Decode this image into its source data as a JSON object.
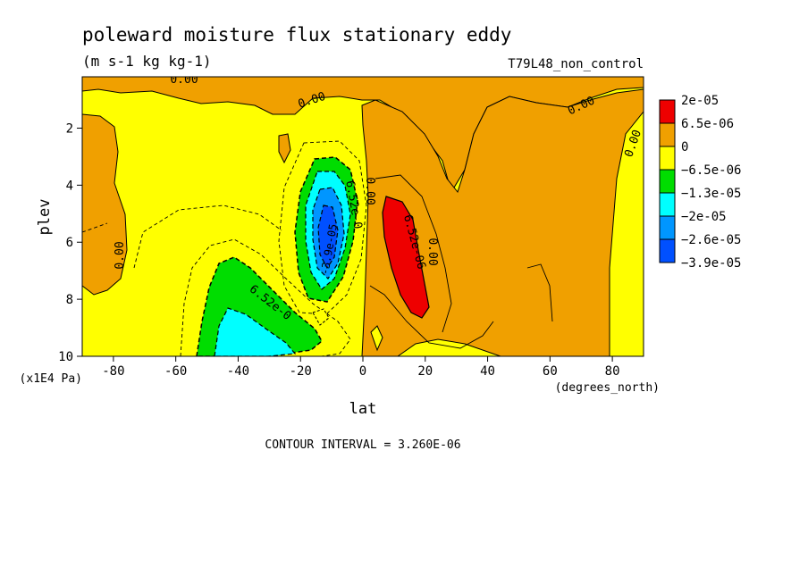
{
  "chart_data": {
    "type": "heatmap",
    "title": "poleward moisture flux stationary eddy",
    "subtitle": "(m s-1 kg kg-1)",
    "dataset": "T79L48_non_control",
    "xlabel": "lat",
    "xunits": "(degrees_north)",
    "ylabel": "plev",
    "yunits": "(x1E4 Pa)",
    "xlim": [
      -90,
      90
    ],
    "ylim": [
      10,
      0.2
    ],
    "x_ticks": [
      -80,
      -60,
      -40,
      -20,
      0,
      20,
      40,
      60,
      80
    ],
    "y_ticks": [
      2,
      4,
      6,
      8,
      10
    ],
    "colorbar": {
      "labels": [
        "2e-05",
        "6.5e-06",
        "0",
        "−6.5e-06",
        "−1.3e-05",
        "−2e-05",
        "−2.6e-05",
        "−3.9e-05"
      ],
      "colors": [
        "#ee0000",
        "#f0a000",
        "#ffff00",
        "#00dd00",
        "#00ffff",
        "#0096ff",
        "#0050ff"
      ]
    },
    "contour_labels": [
      "0.00",
      "0.00",
      "0.00",
      "0.00",
      "0.00",
      "0.00",
      "0.00",
      "6.52e-0",
      "6.52e-06",
      "6.52e-0",
      "-3.9e-05"
    ],
    "footer": "CONTOUR INTERVAL = 3.260E-06",
    "colors": {
      "orange": "#f0a000",
      "yellow": "#ffff00",
      "red": "#ee0000",
      "green": "#00dd00",
      "cyan": "#00ffff",
      "blue1": "#0096ff",
      "blue2": "#0050ff"
    }
  }
}
